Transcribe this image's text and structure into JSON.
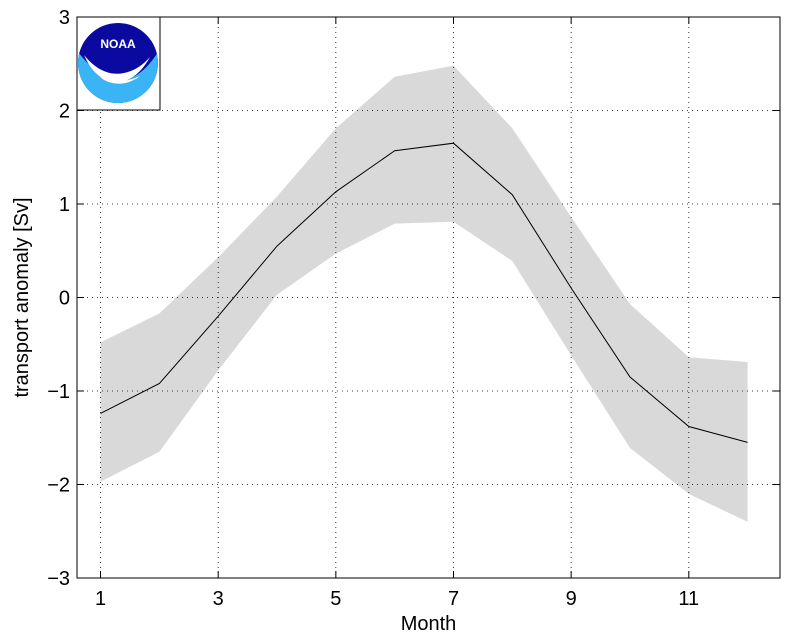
{
  "logo": {
    "text": "NOAA",
    "colors": {
      "navy": "#0a0aa0",
      "sky": "#3ab4f5",
      "white": "#ffffff"
    }
  },
  "chart_data": {
    "type": "area",
    "xlabel": "Month",
    "ylabel": "transport anomaly [Sv]",
    "xlim": [
      0.6,
      12.55
    ],
    "ylim": [
      -3,
      3
    ],
    "xticks": [
      1,
      3,
      5,
      7,
      9,
      11
    ],
    "xtick_labels": [
      "1",
      "3",
      "5",
      "7",
      "9",
      "11"
    ],
    "yticks": [
      -3,
      -2,
      -1,
      0,
      1,
      2,
      3
    ],
    "ytick_labels": [
      "−3",
      "−2",
      "−1",
      "0",
      "1",
      "2",
      "3"
    ],
    "grid": true,
    "grid_style": "dotted",
    "x": [
      1,
      2,
      3,
      4,
      5,
      6,
      7,
      8,
      9,
      10,
      11,
      12
    ],
    "series": [
      {
        "kind": "line",
        "color": "#000000",
        "values": [
          -1.24,
          -0.92,
          -0.2,
          0.55,
          1.13,
          1.57,
          1.65,
          1.1,
          0.1,
          -0.85,
          -1.38,
          -1.55
        ]
      },
      {
        "kind": "band",
        "color": "#d9d9d9",
        "upper": [
          -0.48,
          -0.17,
          0.43,
          1.08,
          1.81,
          2.36,
          2.48,
          1.81,
          0.86,
          -0.07,
          -0.64,
          -0.69
        ],
        "lower": [
          -1.97,
          -1.65,
          -0.78,
          0.03,
          0.47,
          0.79,
          0.81,
          0.39,
          -0.62,
          -1.61,
          -2.1,
          -2.4
        ]
      }
    ]
  }
}
